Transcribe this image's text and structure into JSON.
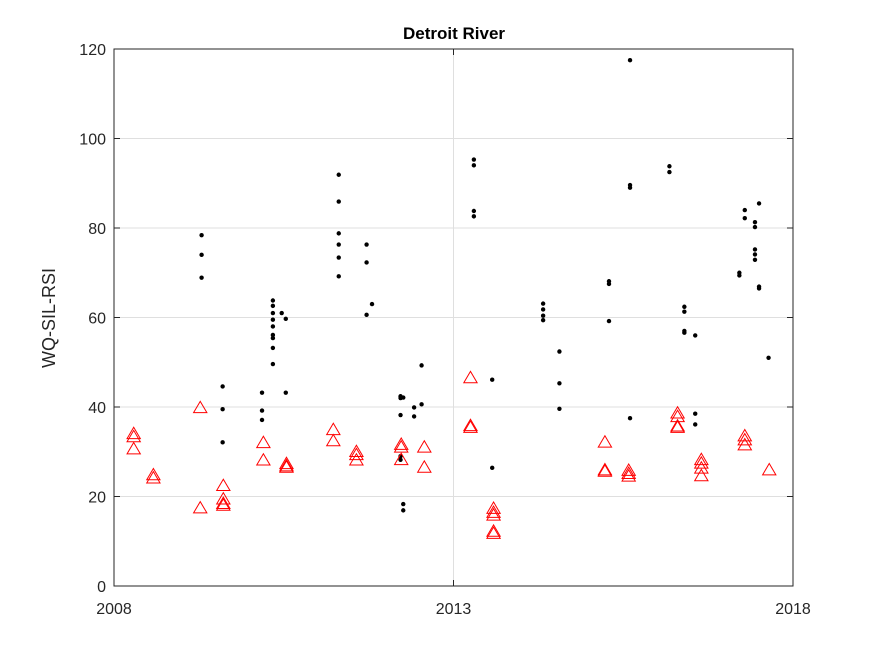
{
  "chart_data": {
    "type": "scatter",
    "title": "Detroit River",
    "xlabel": "",
    "ylabel": "WQ-SIL-RSI",
    "xlim": [
      2008,
      2018
    ],
    "ylim": [
      0,
      120
    ],
    "xticks": [
      2008,
      2013,
      2018
    ],
    "xtick_labels": [
      "2008",
      "2013",
      "2018"
    ],
    "yticks": [
      0,
      20,
      40,
      60,
      80,
      100,
      120
    ],
    "ytick_labels": [
      "0",
      "20",
      "40",
      "60",
      "80",
      "100",
      "120"
    ],
    "grid": true,
    "series": [
      {
        "marker": "dot",
        "color": "#000000",
        "points": [
          [
            2009.29,
            78.4
          ],
          [
            2009.29,
            74.0
          ],
          [
            2009.29,
            68.9
          ],
          [
            2009.6,
            44.6
          ],
          [
            2009.6,
            39.5
          ],
          [
            2009.6,
            32.1
          ],
          [
            2010.18,
            43.2
          ],
          [
            2010.18,
            39.2
          ],
          [
            2010.18,
            37.1
          ],
          [
            2010.34,
            63.8
          ],
          [
            2010.34,
            62.6
          ],
          [
            2010.34,
            61.0
          ],
          [
            2010.34,
            59.5
          ],
          [
            2010.34,
            58.0
          ],
          [
            2010.34,
            56.1
          ],
          [
            2010.34,
            55.4
          ],
          [
            2010.34,
            53.2
          ],
          [
            2010.34,
            49.6
          ],
          [
            2010.47,
            61.0
          ],
          [
            2010.53,
            59.7
          ],
          [
            2010.53,
            43.2
          ],
          [
            2011.31,
            91.9
          ],
          [
            2011.31,
            85.9
          ],
          [
            2011.31,
            78.8
          ],
          [
            2011.31,
            76.3
          ],
          [
            2011.31,
            73.4
          ],
          [
            2011.31,
            69.2
          ],
          [
            2011.72,
            76.3
          ],
          [
            2011.72,
            72.3
          ],
          [
            2011.72,
            60.6
          ],
          [
            2011.8,
            63.0
          ],
          [
            2012.22,
            42.4
          ],
          [
            2012.22,
            42.0
          ],
          [
            2012.22,
            38.2
          ],
          [
            2012.22,
            29.0
          ],
          [
            2012.22,
            28.2
          ],
          [
            2012.26,
            42.1
          ],
          [
            2012.26,
            18.3
          ],
          [
            2012.26,
            16.9
          ],
          [
            2012.42,
            39.9
          ],
          [
            2012.42,
            37.9
          ],
          [
            2012.53,
            49.3
          ],
          [
            2012.53,
            40.6
          ],
          [
            2013.3,
            95.3
          ],
          [
            2013.3,
            94.0
          ],
          [
            2013.3,
            83.8
          ],
          [
            2013.3,
            82.6
          ],
          [
            2013.57,
            46.1
          ],
          [
            2013.57,
            26.4
          ],
          [
            2014.32,
            63.1
          ],
          [
            2014.32,
            61.8
          ],
          [
            2014.32,
            60.4
          ],
          [
            2014.32,
            59.4
          ],
          [
            2014.56,
            52.4
          ],
          [
            2014.56,
            45.3
          ],
          [
            2014.56,
            39.6
          ],
          [
            2015.29,
            68.1
          ],
          [
            2015.29,
            67.5
          ],
          [
            2015.29,
            59.2
          ],
          [
            2015.6,
            117.5
          ],
          [
            2015.6,
            89.6
          ],
          [
            2015.6,
            89.0
          ],
          [
            2015.6,
            37.5
          ],
          [
            2016.18,
            93.8
          ],
          [
            2016.18,
            92.5
          ],
          [
            2016.4,
            62.4
          ],
          [
            2016.4,
            61.3
          ],
          [
            2016.4,
            57.0
          ],
          [
            2016.4,
            56.6
          ],
          [
            2016.56,
            56.0
          ],
          [
            2016.56,
            38.5
          ],
          [
            2016.56,
            36.1
          ],
          [
            2017.21,
            70.0
          ],
          [
            2017.21,
            69.4
          ],
          [
            2017.29,
            84.0
          ],
          [
            2017.29,
            82.2
          ],
          [
            2017.44,
            81.3
          ],
          [
            2017.44,
            80.2
          ],
          [
            2017.44,
            75.2
          ],
          [
            2017.44,
            74.1
          ],
          [
            2017.44,
            72.9
          ],
          [
            2017.5,
            85.5
          ],
          [
            2017.5,
            66.9
          ],
          [
            2017.5,
            66.5
          ],
          [
            2017.64,
            51.0
          ]
        ]
      },
      {
        "marker": "triangle-open",
        "color": "#ff0000",
        "points": [
          [
            2008.29,
            33.9
          ],
          [
            2008.29,
            33.2
          ],
          [
            2008.29,
            30.5
          ],
          [
            2008.58,
            24.7
          ],
          [
            2008.58,
            24.0
          ],
          [
            2009.27,
            17.3
          ],
          [
            2009.27,
            39.7
          ],
          [
            2009.61,
            22.3
          ],
          [
            2009.61,
            19.3
          ],
          [
            2009.61,
            18.3
          ],
          [
            2009.61,
            17.9
          ],
          [
            2010.2,
            31.9
          ],
          [
            2010.2,
            28.0
          ],
          [
            2010.54,
            27.2
          ],
          [
            2010.54,
            26.7
          ],
          [
            2010.54,
            26.4
          ],
          [
            2011.23,
            34.8
          ],
          [
            2011.23,
            32.3
          ],
          [
            2011.57,
            29.9
          ],
          [
            2011.57,
            29.2
          ],
          [
            2011.57,
            28.0
          ],
          [
            2012.23,
            31.5
          ],
          [
            2012.23,
            30.9
          ],
          [
            2012.23,
            28.1
          ],
          [
            2012.57,
            30.9
          ],
          [
            2012.57,
            26.4
          ],
          [
            2013.25,
            46.4
          ],
          [
            2013.25,
            35.7
          ],
          [
            2013.25,
            35.3
          ],
          [
            2013.59,
            17.2
          ],
          [
            2013.59,
            16.3
          ],
          [
            2013.59,
            15.7
          ],
          [
            2013.59,
            12.1
          ],
          [
            2013.59,
            11.6
          ],
          [
            2015.23,
            32.0
          ],
          [
            2015.23,
            25.8
          ],
          [
            2015.23,
            25.5
          ],
          [
            2015.58,
            25.7
          ],
          [
            2015.58,
            25.0
          ],
          [
            2015.58,
            24.4
          ],
          [
            2016.3,
            38.5
          ],
          [
            2016.3,
            37.7
          ],
          [
            2016.3,
            35.6
          ],
          [
            2016.3,
            35.3
          ],
          [
            2016.65,
            28.1
          ],
          [
            2016.65,
            27.3
          ],
          [
            2016.65,
            26.2
          ],
          [
            2016.65,
            24.5
          ],
          [
            2017.29,
            33.4
          ],
          [
            2017.29,
            32.5
          ],
          [
            2017.29,
            31.4
          ],
          [
            2017.65,
            25.8
          ]
        ]
      }
    ]
  }
}
